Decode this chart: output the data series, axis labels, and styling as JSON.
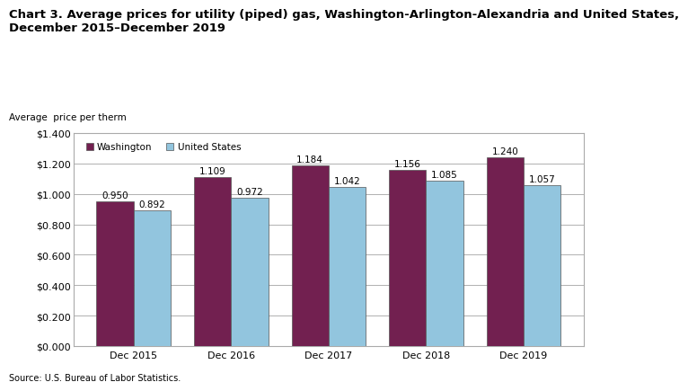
{
  "title_line1": "Chart 3. Average prices for utility (piped) gas, Washington-Arlington-Alexandria and United States,",
  "title_line2": "December 2015–December 2019",
  "ylabel": "Average  price per therm",
  "source": "Source: U.S. Bureau of Labor Statistics.",
  "categories": [
    "Dec 2015",
    "Dec 2016",
    "Dec 2017",
    "Dec 2018",
    "Dec 2019"
  ],
  "washington": [
    0.95,
    1.109,
    1.184,
    1.156,
    1.24
  ],
  "us": [
    0.892,
    0.972,
    1.042,
    1.085,
    1.057
  ],
  "washington_color": "#722050",
  "us_color": "#92C5DE",
  "bar_edge_color": "#555555",
  "ylim": [
    0,
    1.4
  ],
  "yticks": [
    0.0,
    0.2,
    0.4,
    0.6,
    0.8,
    1.0,
    1.2,
    1.4
  ],
  "legend_labels": [
    "Washington",
    "United States"
  ],
  "bar_width": 0.38,
  "title_fontsize": 9.5,
  "ylabel_fontsize": 7.5,
  "tick_fontsize": 8,
  "label_fontsize": 7.5,
  "source_fontsize": 7,
  "background_color": "#ffffff",
  "grid_color": "#b0b0b0",
  "spine_color": "#aaaaaa"
}
